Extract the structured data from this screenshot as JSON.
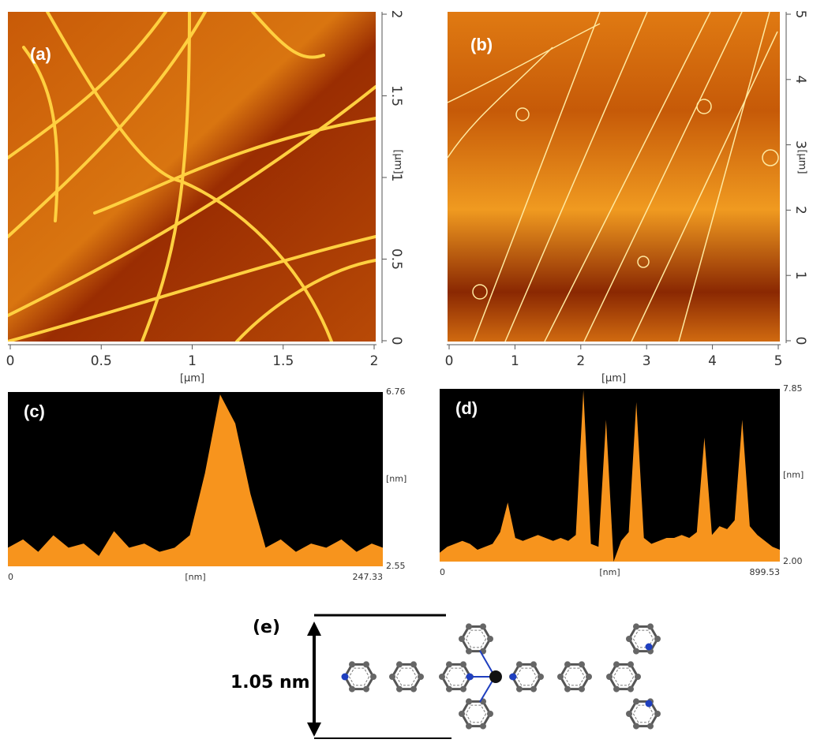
{
  "panels": [
    {
      "label": "(a)",
      "x_unit": "[μm]",
      "y_unit": "[μm]",
      "xlim": [
        0,
        2
      ],
      "ylim": [
        0,
        2
      ],
      "xticks": [
        0,
        0.5,
        1,
        1.5,
        2
      ],
      "yticks": [
        0,
        0.5,
        1,
        1.5,
        2
      ]
    },
    {
      "label": "(b)",
      "x_unit": "[μm]",
      "y_unit": "[μm]",
      "xlim": [
        0,
        5
      ],
      "ylim": [
        0,
        5
      ],
      "xticks": [
        0,
        1,
        2,
        3,
        4,
        5
      ],
      "yticks": [
        0,
        1,
        2,
        3,
        4,
        5
      ]
    },
    {
      "label": "(c)",
      "x_unit": "[nm]",
      "y_unit": "[nm]",
      "xlim": [
        0,
        247.33
      ],
      "ylim": [
        2.55,
        6.76
      ],
      "xticks": [
        0,
        247.33
      ],
      "yticks": [
        2.55,
        6.76
      ],
      "x": [
        0,
        10,
        20,
        30,
        40,
        50,
        60,
        70,
        80,
        90,
        100,
        110,
        120,
        130,
        140,
        150,
        160,
        170,
        180,
        190,
        200,
        210,
        220,
        230,
        240,
        247.33
      ],
      "heights": [
        3.0,
        3.2,
        2.9,
        3.3,
        3.0,
        3.1,
        2.8,
        3.4,
        3.0,
        3.1,
        2.9,
        3.0,
        3.3,
        4.8,
        6.7,
        6.0,
        4.3,
        3.0,
        3.2,
        2.9,
        3.1,
        3.0,
        3.2,
        2.9,
        3.1,
        3.0
      ]
    },
    {
      "label": "(d)",
      "x_unit": "[nm]",
      "y_unit": "[nm]",
      "xlim": [
        0,
        899.53
      ],
      "ylim": [
        2,
        7.85
      ],
      "xticks": [
        0,
        899.53
      ],
      "yticks": [
        {
          "value": 2,
          "label": "2.00"
        },
        7.85
      ],
      "x": [
        0,
        20,
        40,
        60,
        80,
        100,
        120,
        140,
        160,
        180,
        200,
        220,
        240,
        260,
        280,
        300,
        320,
        340,
        360,
        380,
        400,
        420,
        440,
        460,
        480,
        500,
        520,
        540,
        560,
        580,
        600,
        620,
        640,
        660,
        680,
        700,
        720,
        740,
        760,
        780,
        800,
        820,
        840,
        860,
        880,
        899.53
      ],
      "heights": [
        2.3,
        2.5,
        2.6,
        2.7,
        2.6,
        2.4,
        2.5,
        2.6,
        3.0,
        4.0,
        2.8,
        2.7,
        2.8,
        2.9,
        2.8,
        2.7,
        2.8,
        2.7,
        2.9,
        7.8,
        2.6,
        2.5,
        6.8,
        2.0,
        2.7,
        3.0,
        7.4,
        2.8,
        2.6,
        2.7,
        2.8,
        2.8,
        2.9,
        2.8,
        3.0,
        6.2,
        2.9,
        3.2,
        3.1,
        3.4,
        6.8,
        3.2,
        2.9,
        2.7,
        2.5,
        2.4
      ]
    }
  ],
  "molecule": {
    "label": "(e)",
    "height": "1.05 nm"
  }
}
